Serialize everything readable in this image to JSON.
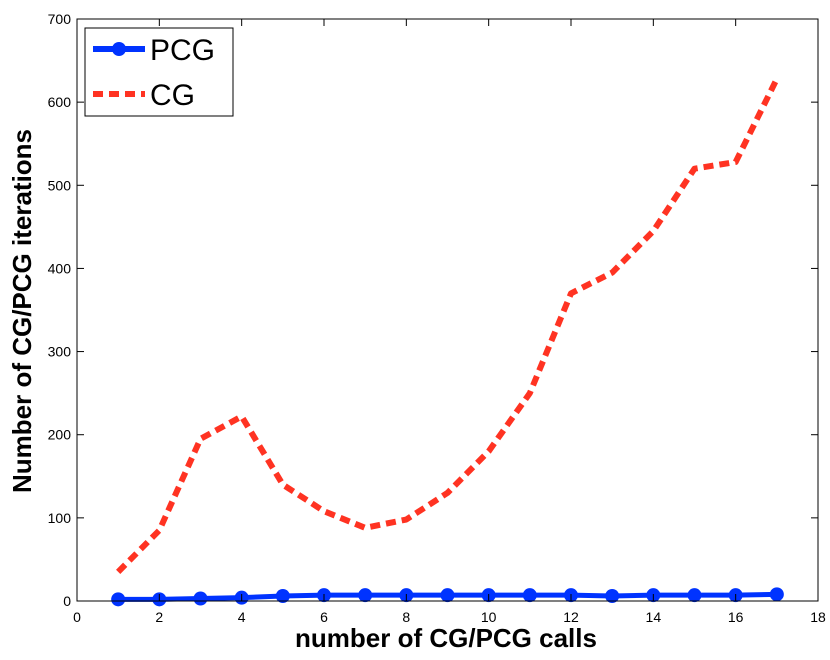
{
  "chart_data": {
    "type": "line",
    "title": "",
    "xlabel": "number of CG/PCG calls",
    "ylabel": "Number of CG/PCG iterations",
    "xlim": [
      0,
      18
    ],
    "ylim": [
      0,
      700
    ],
    "xticks": [
      0,
      2,
      4,
      6,
      8,
      10,
      12,
      14,
      16,
      18
    ],
    "yticks": [
      0,
      100,
      200,
      300,
      400,
      500,
      600,
      700
    ],
    "grid": false,
    "legend_position": "top-left",
    "x": [
      1,
      2,
      3,
      4,
      5,
      6,
      7,
      8,
      9,
      10,
      11,
      12,
      13,
      14,
      15,
      16,
      17
    ],
    "series": [
      {
        "name": "PCG",
        "color": "#0033ff",
        "style": "solid-with-circle-markers",
        "values": [
          2,
          2,
          3,
          4,
          6,
          7,
          7,
          7,
          7,
          7,
          7,
          7,
          6,
          7,
          7,
          7,
          8
        ]
      },
      {
        "name": "CG",
        "color": "#ff3322",
        "style": "dashed",
        "values": [
          35,
          85,
          195,
          222,
          140,
          108,
          88,
          98,
          130,
          180,
          250,
          370,
          395,
          445,
          520,
          528,
          628
        ]
      }
    ]
  }
}
